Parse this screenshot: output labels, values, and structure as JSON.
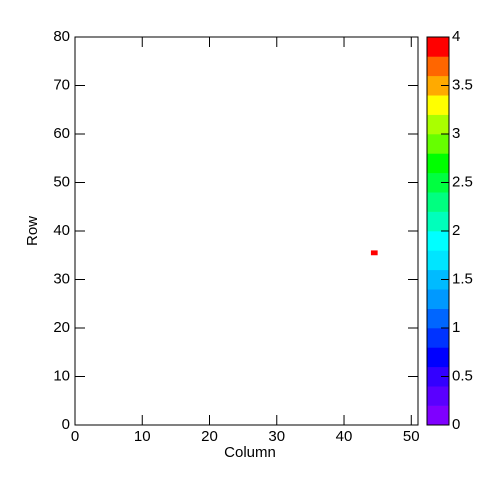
{
  "chart_data": {
    "type": "heatmap",
    "x_label": "Column",
    "y_label": "Row",
    "x": [
      44
    ],
    "y": [
      35
    ],
    "values": [
      4
    ],
    "xlim": [
      0,
      51
    ],
    "ylim": [
      0,
      80
    ],
    "xticks": [
      0,
      10,
      20,
      30,
      40,
      50
    ],
    "yticks": [
      0,
      10,
      20,
      30,
      40,
      50,
      60,
      70,
      80
    ],
    "zlim": [
      0,
      4
    ],
    "zticks": [
      0,
      0.5,
      1,
      1.5,
      2,
      2.5,
      3,
      3.5,
      4
    ],
    "palette": [
      "#7f00ff",
      "#5a00ff",
      "#3300ff",
      "#0000ff",
      "#0033ff",
      "#0066ff",
      "#0099ff",
      "#00bbff",
      "#00e5ff",
      "#00ffff",
      "#00ffbb",
      "#00ff80",
      "#00ff40",
      "#00ff00",
      "#66ff00",
      "#aaff00",
      "#ffff00",
      "#ffaa00",
      "#ff6600",
      "#ff0000"
    ]
  }
}
